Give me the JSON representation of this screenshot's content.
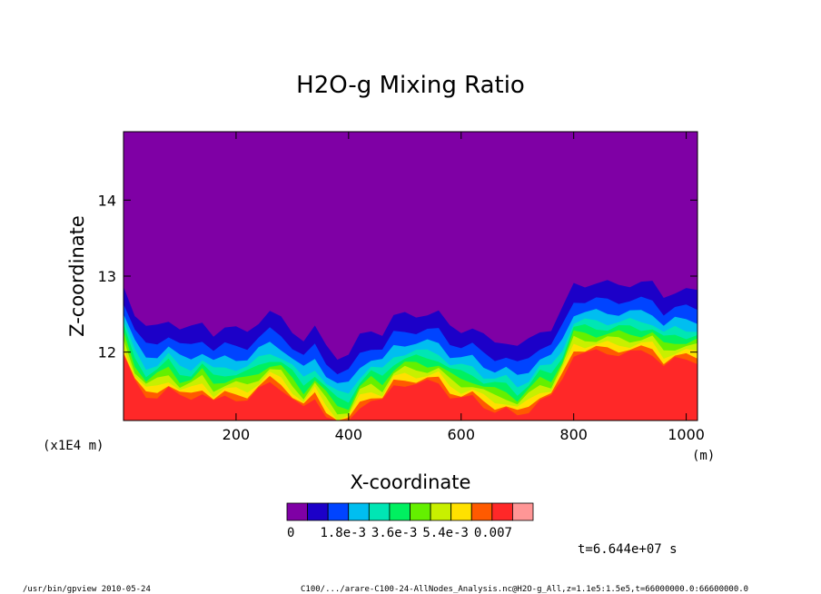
{
  "chart_data": {
    "type": "heatmap",
    "title": "H2O-g Mixing Ratio",
    "xlabel": "X-coordinate",
    "ylabel": "Z-coordinate",
    "x_unit": "(m)",
    "y_unit": "(x1E4 m)",
    "xlim": [
      0,
      1020
    ],
    "ylim": [
      11.1,
      14.9
    ],
    "x_ticks": [
      200,
      400,
      600,
      800,
      1000
    ],
    "y_ticks": [
      12,
      13,
      14
    ],
    "color_levels": [
      "#7f00a5",
      "#1c00c8",
      "#0044ff",
      "#00bef0",
      "#00e6b4",
      "#00f060",
      "#64f000",
      "#c8f000",
      "#ffe100",
      "#ff5a00",
      "#ff2828",
      "#ff9696"
    ],
    "colorbar_labels": [
      "0",
      "1.8e-3",
      "3.6e-3",
      "5.4e-3",
      "0.007"
    ],
    "boundary_x": [
      0,
      20,
      40,
      60,
      80,
      100,
      120,
      140,
      160,
      180,
      200,
      220,
      240,
      260,
      280,
      300,
      320,
      340,
      360,
      380,
      400,
      420,
      440,
      460,
      480,
      500,
      520,
      540,
      560,
      580,
      600,
      620,
      640,
      660,
      680,
      700,
      720,
      740,
      760,
      780,
      800,
      820,
      840,
      860,
      880,
      900,
      920,
      940,
      960,
      980,
      1000,
      1020
    ],
    "boundary_z": [
      12.9,
      12.5,
      12.3,
      12.35,
      12.45,
      12.3,
      12.3,
      12.4,
      12.25,
      12.3,
      12.3,
      12.3,
      12.4,
      12.5,
      12.45,
      12.3,
      12.15,
      12.3,
      12.1,
      11.95,
      11.95,
      12.2,
      12.3,
      12.25,
      12.45,
      12.5,
      12.5,
      12.5,
      12.5,
      12.35,
      12.3,
      12.3,
      12.2,
      12.15,
      12.15,
      12.05,
      12.15,
      12.3,
      12.3,
      12.55,
      12.9,
      12.9,
      12.9,
      12.9,
      12.9,
      12.9,
      12.9,
      12.9,
      12.75,
      12.8,
      12.8,
      12.8
    ]
  },
  "time_label": "t=6.644e+07 s",
  "footer": {
    "left": "/usr/bin/gpview  2010-05-24",
    "right": "C100/.../arare-C100-24-AllNodes_Analysis.nc@H2O-g_All,z=1.1e5:1.5e5,t=66000000.0:66600000.0"
  }
}
